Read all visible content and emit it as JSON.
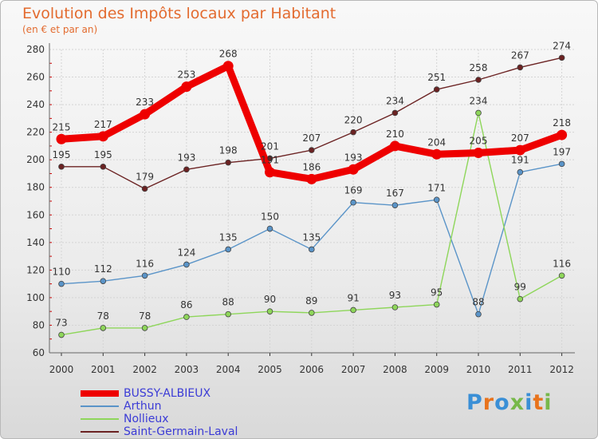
{
  "title": "Evolution des Impôts locaux par Habitant",
  "subtitle": "(en € et par an)",
  "chart_data": {
    "type": "line",
    "title": "Evolution des Impôts locaux par Habitant",
    "subtitle": "(en € et par an)",
    "xlabel": "",
    "ylabel": "",
    "x": [
      "2000",
      "2001",
      "2002",
      "2003",
      "2004",
      "2005",
      "2006",
      "2007",
      "2008",
      "2009",
      "2010",
      "2011",
      "2012"
    ],
    "ylim": [
      60,
      280
    ],
    "yticks": [
      "60",
      "80",
      "100",
      "120",
      "140",
      "160",
      "180",
      "200",
      "220",
      "240",
      "260",
      "280"
    ],
    "grid": true,
    "legend_position": "bottom-left",
    "series": [
      {
        "name": "Saint-Germain-Laval",
        "color": "#6b2222",
        "values": [
          195,
          195,
          179,
          193,
          198,
          201,
          207,
          220,
          234,
          251,
          258,
          267,
          274
        ]
      },
      {
        "name": "Arthun",
        "color": "#5a94c8",
        "values": [
          110,
          112,
          116,
          124,
          135,
          150,
          135,
          169,
          167,
          171,
          88,
          191,
          197
        ]
      },
      {
        "name": "Nollieux",
        "color": "#8ed65a",
        "values": [
          73,
          78,
          78,
          86,
          88,
          90,
          89,
          91,
          93,
          95,
          234,
          99,
          116
        ]
      },
      {
        "name": "BUSSY-ALBIEUX",
        "color": "#ee0000",
        "values": [
          215,
          217,
          233,
          253,
          268,
          191,
          186,
          193,
          210,
          204,
          205,
          207,
          218
        ]
      }
    ],
    "legend": [
      "BUSSY-ALBIEUX",
      "Arthun",
      "Nollieux",
      "Saint-Germain-Laval"
    ]
  },
  "legend_colors": {
    "BUSSY-ALBIEUX": "#ee0000",
    "Arthun": "#5a94c8",
    "Nollieux": "#8ed65a",
    "Saint-Germain-Laval": "#6b2222"
  },
  "logo": {
    "text": "Proxiti",
    "colors": [
      "#3a8fd6",
      "#e8731c",
      "#3a8fd6",
      "#77b84a",
      "#3a8fd6",
      "#e8731c",
      "#77b84a"
    ]
  }
}
